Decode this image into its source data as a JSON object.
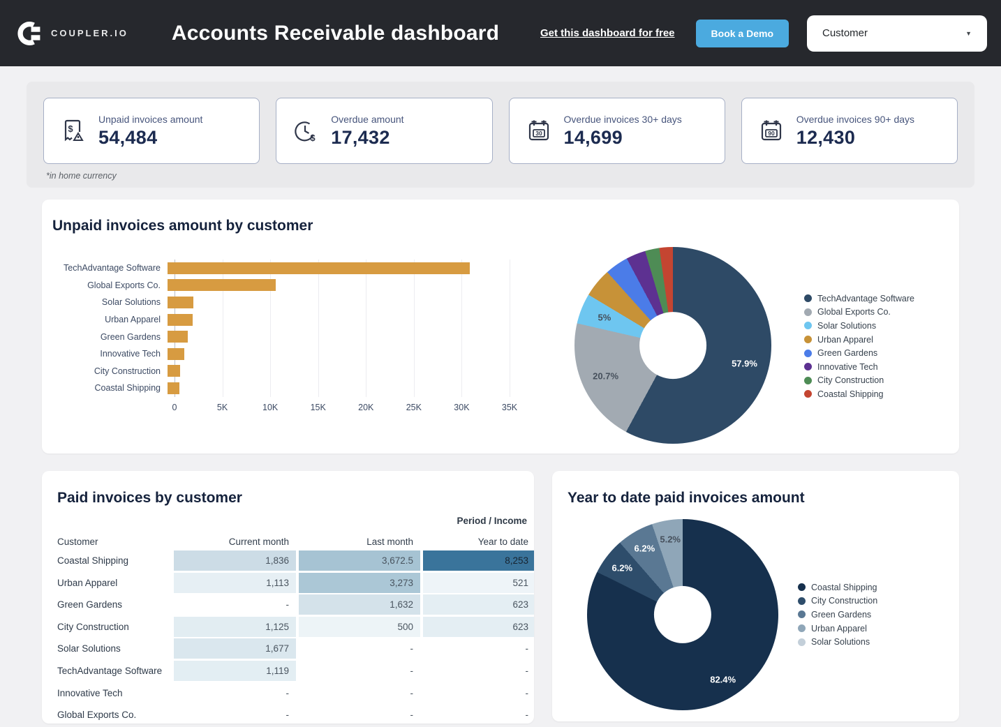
{
  "header": {
    "brand": "COUPLER.IO",
    "title": "Accounts Receivable dashboard",
    "link_label": "Get this dashboard for free",
    "demo_button_label": "Book a Demo",
    "filter_value": "Customer",
    "colors": {
      "bg": "#26282D",
      "accent": "#4BAADF"
    }
  },
  "kpis": {
    "note": "*in home currency",
    "cards": [
      {
        "icon": "invoice-dollar-icon",
        "label": "Unpaid invoices amount",
        "value": "54,484"
      },
      {
        "icon": "clock-dollar-icon",
        "label": "Overdue amount",
        "value": "17,432"
      },
      {
        "icon": "calendar-30-icon",
        "label": "Overdue invoices 30+ days",
        "value": "14,699"
      },
      {
        "icon": "calendar-90-icon",
        "label": "Overdue invoices 90+ days",
        "value": "12,430"
      }
    ]
  },
  "chart_data": [
    {
      "type": "bar",
      "title": "Unpaid invoices amount by customer",
      "orientation": "horizontal",
      "categories": [
        "TechAdvantage Software",
        "Global Exports Co.",
        "Solar Solutions",
        "Urban Apparel",
        "Green Gardens",
        "Innovative Tech",
        "City Construction",
        "Coastal Shipping"
      ],
      "values": [
        31546,
        11278,
        2724,
        2600,
        2100,
        1750,
        1280,
        1206
      ],
      "xlim": [
        0,
        35000
      ],
      "xticks": [
        "0",
        "5K",
        "10K",
        "15K",
        "20K",
        "25K",
        "30K",
        "35K"
      ],
      "xlabel": "",
      "ylabel": "",
      "grid": true,
      "bar_color": "#D79B41"
    },
    {
      "type": "pie",
      "title": "Unpaid invoices amount by customer",
      "labels": [
        "TechAdvantage Software",
        "Global Exports Co.",
        "Solar Solutions",
        "Urban Apparel",
        "Green Gardens",
        "Innovative Tech",
        "City Construction",
        "Coastal Shipping"
      ],
      "values": [
        31546,
        11278,
        2724,
        2600,
        2100,
        1750,
        1280,
        1206
      ],
      "pct_labels": [
        "57.9%",
        "20.7%",
        "5%",
        "",
        "",
        "",
        "",
        ""
      ],
      "colors": [
        "#2E4A66",
        "#A2AAB2",
        "#6EC6F0",
        "#C79238",
        "#4B7CE8",
        "#5D3191",
        "#4E8C55",
        "#C44531"
      ],
      "hole_ratio": 0.34,
      "label_radius": 0.75,
      "legend_position": "right"
    },
    {
      "type": "table",
      "title": "Paid invoices by customer",
      "corner_label": "Period / Income",
      "columns": [
        "Customer",
        "Current month",
        "Last month",
        "Year to date"
      ],
      "rows": [
        {
          "name": "Coastal Shipping",
          "cells": [
            {
              "v": "1,836",
              "bg": "#CCDCE6"
            },
            {
              "v": "3,672.5",
              "bg": "#A6C3D3"
            },
            {
              "v": "8,253",
              "bg": "#3A749B",
              "fg": "#17232F"
            }
          ]
        },
        {
          "name": "Urban Apparel",
          "cells": [
            {
              "v": "1,113",
              "bg": "#E6EFF4"
            },
            {
              "v": "3,273",
              "bg": "#ABC7D6"
            },
            {
              "v": "521",
              "bg": "#EEF4F8"
            }
          ]
        },
        {
          "name": "Green Gardens",
          "cells": [
            {
              "v": "-"
            },
            {
              "v": "1,632",
              "bg": "#D4E2EA"
            },
            {
              "v": "623",
              "bg": "#E4EEF3"
            }
          ]
        },
        {
          "name": "City Construction",
          "cells": [
            {
              "v": "1,125",
              "bg": "#E2EDF2"
            },
            {
              "v": "500",
              "bg": "#EDF4F7"
            },
            {
              "v": "623",
              "bg": "#E4EEF3"
            }
          ]
        },
        {
          "name": "Solar Solutions",
          "cells": [
            {
              "v": "1,677",
              "bg": "#DAE7EE"
            },
            {
              "v": "-"
            },
            {
              "v": "-"
            }
          ]
        },
        {
          "name": "TechAdvantage Software",
          "cells": [
            {
              "v": "1,119",
              "bg": "#E3EEF3"
            },
            {
              "v": "-"
            },
            {
              "v": "-"
            }
          ]
        },
        {
          "name": "Innovative Tech",
          "cells": [
            {
              "v": "-"
            },
            {
              "v": "-"
            },
            {
              "v": "-"
            }
          ]
        },
        {
          "name": "Global Exports Co.",
          "cells": [
            {
              "v": "-"
            },
            {
              "v": "-"
            },
            {
              "v": "-"
            }
          ]
        }
      ]
    },
    {
      "type": "pie",
      "title": "Year to date paid invoices amount",
      "labels": [
        "Coastal Shipping",
        "City Construction",
        "Green Gardens",
        "Urban Apparel",
        "Solar Solutions"
      ],
      "values": [
        8253,
        623,
        623,
        521,
        0
      ],
      "pct_labels": [
        "82.4%",
        "6.2%",
        "6.2%",
        "5.2%",
        ""
      ],
      "colors": [
        "#16304D",
        "#2E4D6B",
        "#5A7893",
        "#8FA6B8",
        "#C3CFD9"
      ],
      "hole_ratio": 0.3,
      "label_radius": 0.8,
      "legend_position": "right"
    }
  ]
}
